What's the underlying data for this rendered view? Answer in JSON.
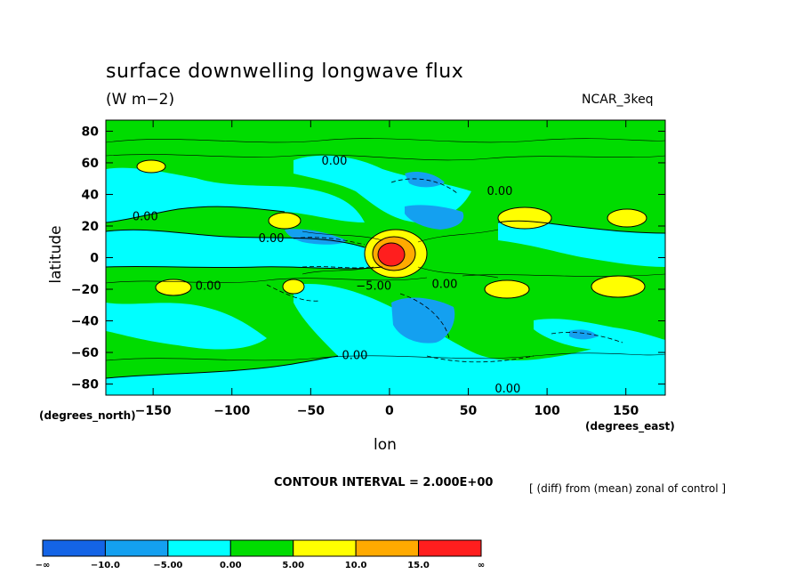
{
  "chart_data": {
    "type": "heatmap",
    "title": "surface downwelling longwave flux",
    "units_label": "(W m−2)",
    "model_label": "NCAR_3keq",
    "xlabel": "lon",
    "ylabel": "latitude",
    "x_unit": "(degrees_east)",
    "y_unit": "(degrees_north)",
    "xlim": [
      -180,
      175
    ],
    "ylim": [
      -87,
      87
    ],
    "x_ticks": [
      -150,
      -100,
      -50,
      0,
      50,
      100,
      150
    ],
    "y_ticks": [
      80,
      60,
      40,
      20,
      0,
      -20,
      -40,
      -60,
      -80
    ],
    "contour_interval_text": "CONTOUR INTERVAL = 2.000E+00",
    "note": "[ (diff) from (mean) zonal of control ]",
    "contour_labels": [
      {
        "text": "0.00",
        "x": -35,
        "y": 61
      },
      {
        "text": "0.00",
        "x": 70,
        "y": 42
      },
      {
        "text": "0.00",
        "x": -155,
        "y": 26
      },
      {
        "text": "0.00",
        "x": -75,
        "y": 12
      },
      {
        "text": "−5.00",
        "x": -10,
        "y": -18
      },
      {
        "text": "0.00",
        "x": 35,
        "y": -17
      },
      {
        "text": "0.00",
        "x": -115,
        "y": -18
      },
      {
        "text": "0.00",
        "x": -22,
        "y": -62
      },
      {
        "text": "0.00",
        "x": 75,
        "y": -83
      }
    ],
    "colorbar": {
      "boundaries": [
        "−∞",
        "−10.0",
        "−5.00",
        "0.00",
        "5.00",
        "10.0",
        "15.0",
        "∞"
      ],
      "colors": [
        "#1464e6",
        "#14a0f0",
        "#00ffff",
        "#00dc00",
        "#ffff00",
        "#ffaa00",
        "#ff1e1e"
      ]
    }
  }
}
